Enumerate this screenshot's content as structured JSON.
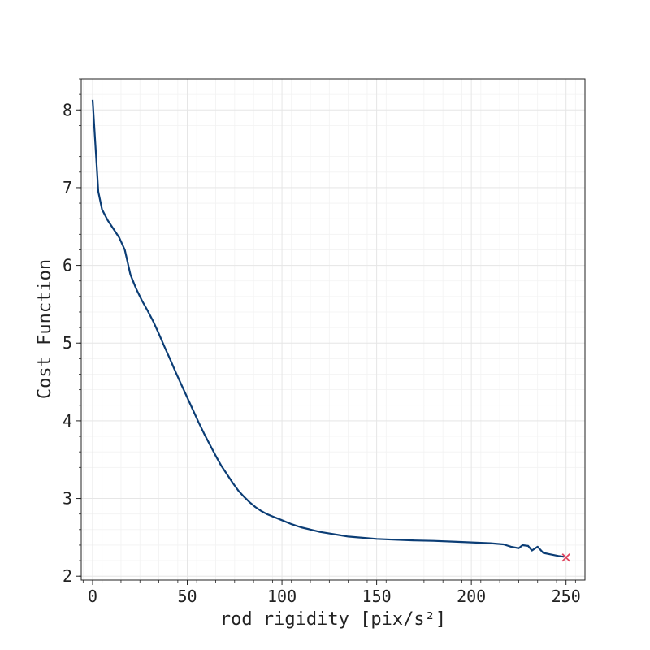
{
  "chart_data": {
    "type": "line",
    "title": "",
    "xlabel": "rod rigidity [pix/s²]",
    "ylabel": "Cost Function",
    "xlim": [
      -6,
      260
    ],
    "ylim": [
      1.95,
      8.4
    ],
    "x_ticks": [
      0,
      50,
      100,
      150,
      200,
      250
    ],
    "y_ticks": [
      2,
      3,
      4,
      5,
      6,
      7,
      8
    ],
    "x_tick_labels": [
      "0",
      "50",
      "100",
      "150",
      "200",
      "250"
    ],
    "y_tick_labels": [
      "2",
      "3",
      "4",
      "5",
      "6",
      "7",
      "8"
    ],
    "grid": true,
    "minor_grid": true,
    "series": [
      {
        "color": "#0b3d75",
        "x": [
          0,
          3,
          5,
          8,
          11,
          14,
          17,
          20,
          23,
          26,
          29,
          32,
          35,
          38,
          41,
          44,
          47,
          50,
          53,
          56,
          59,
          62,
          65,
          68,
          71,
          74,
          77,
          80,
          83,
          86,
          89,
          92,
          95,
          100,
          105,
          110,
          115,
          120,
          125,
          130,
          135,
          140,
          145,
          150,
          155,
          160,
          170,
          180,
          190,
          200,
          210,
          217,
          221,
          225,
          227,
          230,
          232,
          235,
          238,
          242,
          246,
          249
        ],
        "y": [
          8.13,
          6.95,
          6.72,
          6.58,
          6.47,
          6.36,
          6.2,
          5.88,
          5.7,
          5.55,
          5.42,
          5.28,
          5.12,
          4.95,
          4.79,
          4.62,
          4.46,
          4.3,
          4.14,
          3.98,
          3.83,
          3.69,
          3.55,
          3.42,
          3.31,
          3.2,
          3.1,
          3.02,
          2.95,
          2.89,
          2.84,
          2.8,
          2.77,
          2.72,
          2.67,
          2.63,
          2.6,
          2.57,
          2.55,
          2.53,
          2.51,
          2.5,
          2.49,
          2.48,
          2.475,
          2.47,
          2.46,
          2.455,
          2.445,
          2.435,
          2.425,
          2.41,
          2.38,
          2.36,
          2.4,
          2.39,
          2.33,
          2.38,
          2.3,
          2.28,
          2.26,
          2.25
        ]
      }
    ],
    "marker": {
      "x": 250,
      "y": 2.24,
      "symbol": "x",
      "color": "#e0455f"
    },
    "line_color": "#0b3d75",
    "grid_color": "#e6e6e6"
  }
}
